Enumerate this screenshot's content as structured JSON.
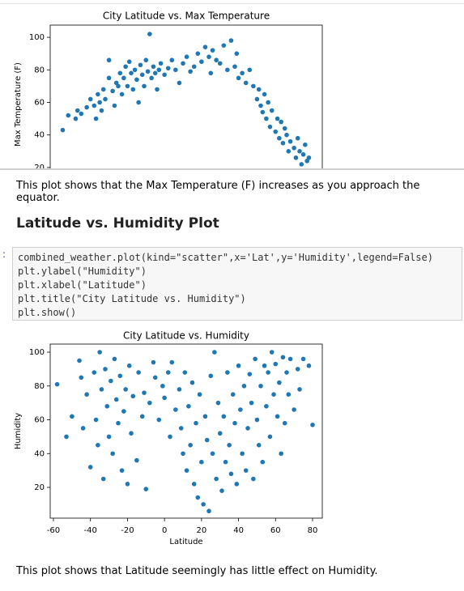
{
  "chart_data": [
    {
      "type": "scatter",
      "title": "City Latitude vs. Max Temperature",
      "ylabel": "Max Temperature (F)",
      "color": "#1f77b4",
      "xlim": [
        -61.75,
        85.25
      ],
      "ylim": [
        10,
        107.5
      ],
      "yticks": [
        100,
        80,
        60,
        40,
        20
      ],
      "x": [
        -55,
        -52,
        -48,
        -47,
        -45,
        -42,
        -40,
        -38,
        -37,
        -36,
        -35,
        -34,
        -33,
        -32,
        -30,
        -30,
        -28,
        -27,
        -26,
        -25,
        -24,
        -23,
        -22,
        -21,
        -20,
        -19,
        -18,
        -17,
        -16,
        -15,
        -14,
        -13,
        -12,
        -11,
        -10,
        -9,
        -8,
        -7,
        -6,
        -5,
        -4,
        -3,
        -2,
        0,
        2,
        4,
        6,
        8,
        10,
        12,
        14,
        16,
        18,
        20,
        22,
        24,
        25,
        26,
        28,
        30,
        32,
        34,
        36,
        38,
        39,
        40,
        42,
        44,
        46,
        48,
        50,
        51,
        52,
        53,
        54,
        55,
        56,
        57,
        58,
        60,
        61,
        62,
        63,
        64,
        65,
        66,
        67,
        68,
        70,
        71,
        72,
        73,
        74,
        75,
        76,
        77,
        78
      ],
      "values": [
        43,
        52,
        50,
        55,
        53,
        57,
        62,
        58,
        50,
        65,
        60,
        55,
        68,
        62,
        75,
        86,
        67,
        58,
        72,
        70,
        78,
        65,
        75,
        82,
        70,
        85,
        78,
        68,
        80,
        74,
        60,
        83,
        77,
        70,
        86,
        79,
        102,
        75,
        82,
        78,
        68,
        80,
        84,
        77,
        81,
        86,
        80,
        72,
        84,
        88,
        79,
        82,
        90,
        85,
        94,
        88,
        78,
        92,
        86,
        84,
        95,
        80,
        98,
        82,
        90,
        75,
        78,
        72,
        80,
        70,
        62,
        68,
        58,
        54,
        65,
        50,
        60,
        45,
        55,
        42,
        50,
        38,
        48,
        35,
        44,
        40,
        30,
        36,
        32,
        26,
        38,
        30,
        22,
        28,
        34,
        24,
        26
      ]
    },
    {
      "type": "scatter",
      "title": "City Latitude vs. Humidity",
      "ylabel": "Humidity",
      "xlabel": "Latitude",
      "color": "#1f77b4",
      "xlim": [
        -61.75,
        85.25
      ],
      "ylim": [
        1.8,
        104.8
      ],
      "yticks": [
        100,
        80,
        60,
        40,
        20
      ],
      "xticks": [
        -60,
        -40,
        -20,
        0,
        20,
        40,
        60,
        80
      ],
      "x": [
        -58,
        -53,
        -50,
        -46,
        -45,
        -44,
        -42,
        -40,
        -38,
        -37,
        -36,
        -35,
        -34,
        -33,
        -32,
        -31,
        -30,
        -29,
        -28,
        -27,
        -26,
        -25,
        -24,
        -23,
        -22,
        -21,
        -20,
        -19,
        -18,
        -17,
        -15,
        -14,
        -12,
        -11,
        -10,
        -8,
        -6,
        -5,
        -3,
        -1,
        0,
        2,
        3,
        4,
        6,
        8,
        9,
        10,
        11,
        12,
        13,
        14,
        15,
        16,
        17,
        18,
        19,
        20,
        21,
        22,
        23,
        24,
        25,
        26,
        27,
        28,
        29,
        30,
        31,
        32,
        33,
        34,
        35,
        36,
        37,
        38,
        39,
        40,
        41,
        42,
        43,
        44,
        45,
        46,
        47,
        48,
        49,
        50,
        51,
        52,
        53,
        54,
        55,
        56,
        57,
        58,
        59,
        60,
        61,
        62,
        63,
        64,
        65,
        66,
        67,
        68,
        70,
        72,
        73,
        75,
        78,
        80
      ],
      "values": [
        81,
        50,
        62,
        95,
        85,
        55,
        75,
        32,
        88,
        60,
        45,
        100,
        78,
        25,
        90,
        68,
        50,
        83,
        40,
        96,
        72,
        58,
        86,
        30,
        65,
        78,
        22,
        92,
        52,
        74,
        36,
        88,
        62,
        76,
        19,
        70,
        94,
        85,
        60,
        80,
        73,
        88,
        50,
        94,
        66,
        78,
        55,
        40,
        88,
        30,
        68,
        45,
        82,
        22,
        58,
        14,
        75,
        35,
        10,
        62,
        48,
        6,
        86,
        40,
        100,
        25,
        70,
        52,
        18,
        62,
        35,
        88,
        45,
        28,
        75,
        58,
        22,
        92,
        66,
        40,
        80,
        30,
        55,
        87,
        70,
        25,
        96,
        60,
        45,
        80,
        35,
        92,
        68,
        88,
        50,
        100,
        75,
        93,
        62,
        82,
        40,
        97,
        58,
        88,
        75,
        96,
        66,
        90,
        78,
        96,
        92,
        57
      ]
    }
  ],
  "texts": {
    "note1": "This plot shows that the Max Temperature (F) increases as you approach the equator.",
    "heading": "Latitude vs. Humidity Plot",
    "prompt": ":",
    "code": [
      "combined_weather.plot(kind=\"scatter\",x='Lat',y='Humidity',legend=False)",
      "plt.ylabel(\"Humidity\")",
      "plt.xlabel(\"Latitude\")",
      "plt.title(\"City Latitude vs. Humidity\")",
      "plt.show()"
    ],
    "note2": "This plot shows that Latitude seemingly has little effect on Humidity."
  }
}
